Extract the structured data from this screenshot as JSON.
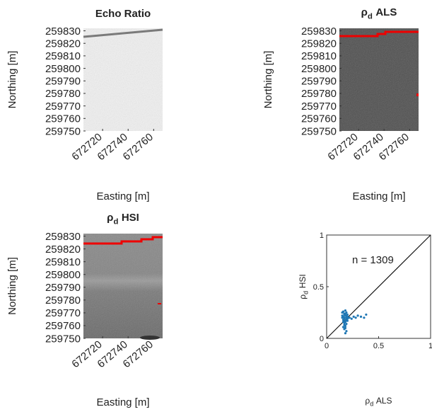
{
  "chart_data": [
    {
      "type": "image",
      "title": "Echo Ratio",
      "xlabel": "Easting [m]",
      "ylabel": "Northing [m]",
      "xlim": [
        672705,
        672767
      ],
      "xticks": [
        672720,
        672740,
        672760
      ],
      "ylim": [
        259750,
        259832
      ],
      "yticks": [
        259750,
        259760,
        259770,
        259780,
        259790,
        259800,
        259810,
        259820,
        259830
      ]
    },
    {
      "type": "image",
      "title": {
        "symbol": "ρ",
        "subscript": "d",
        "text": "ALS"
      },
      "xlabel": "Easting [m]",
      "ylabel": "Northing [m]",
      "xlim": [
        672705,
        672767
      ],
      "xticks": [
        672720,
        672740,
        672760
      ],
      "ylim": [
        259750,
        259832
      ],
      "yticks": [
        259750,
        259760,
        259770,
        259780,
        259790,
        259800,
        259810,
        259820,
        259830
      ]
    },
    {
      "type": "image",
      "title": {
        "symbol": "ρ",
        "subscript": "d",
        "text": "HSI"
      },
      "xlabel": "Easting [m]",
      "ylabel": "Northing [m]",
      "xlim": [
        672705,
        672767
      ],
      "xticks": [
        672720,
        672740,
        672760
      ],
      "ylim": [
        259750,
        259832
      ],
      "yticks": [
        259750,
        259760,
        259770,
        259780,
        259790,
        259800,
        259810,
        259820,
        259830
      ]
    },
    {
      "type": "scatter",
      "annotation": "n = 1309",
      "color": "#1f77b4",
      "xlabel": {
        "symbol": "ρ",
        "subscript": "d",
        "text": "ALS"
      },
      "ylabel": {
        "symbol": "ρ",
        "subscript": "d",
        "text": "HSI"
      },
      "xlim": [
        0,
        1
      ],
      "xticks": [
        0,
        0.5,
        1
      ],
      "ylim": [
        0,
        1
      ],
      "yticks": [
        0,
        0.5,
        1
      ],
      "x": [
        0.15,
        0.16,
        0.17,
        0.18,
        0.19,
        0.2,
        0.15,
        0.16,
        0.17,
        0.18,
        0.19,
        0.2,
        0.16,
        0.17,
        0.18,
        0.19,
        0.2,
        0.15,
        0.17,
        0.18,
        0.19,
        0.21,
        0.16,
        0.17,
        0.18,
        0.2,
        0.22,
        0.24,
        0.26,
        0.28,
        0.3,
        0.33,
        0.36,
        0.38,
        0.17,
        0.18,
        0.19,
        0.18,
        0.17,
        0.16,
        0.19,
        0.18
      ],
      "values": [
        0.25,
        0.26,
        0.24,
        0.27,
        0.25,
        0.23,
        0.22,
        0.21,
        0.2,
        0.22,
        0.2,
        0.21,
        0.18,
        0.19,
        0.17,
        0.18,
        0.19,
        0.2,
        0.23,
        0.24,
        0.22,
        0.2,
        0.16,
        0.15,
        0.16,
        0.17,
        0.2,
        0.19,
        0.21,
        0.2,
        0.22,
        0.21,
        0.2,
        0.23,
        0.13,
        0.12,
        0.14,
        0.1,
        0.09,
        0.11,
        0.07,
        0.05
      ]
    }
  ]
}
